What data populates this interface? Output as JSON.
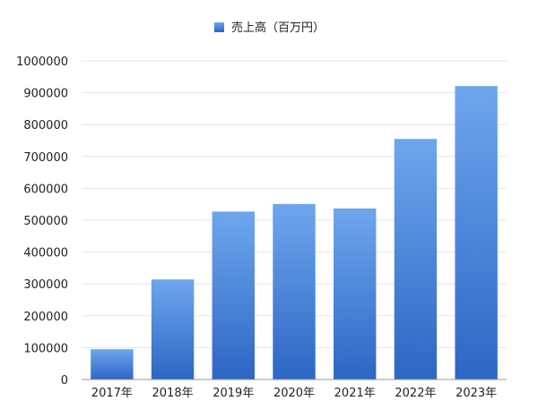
{
  "chart_data": {
    "type": "bar",
    "title": "",
    "xlabel": "",
    "ylabel": "",
    "categories": [
      "2017年",
      "2018年",
      "2019年",
      "2020年",
      "2021年",
      "2022年",
      "2023年"
    ],
    "series": [
      {
        "name": "売上高（百万円）",
        "values": [
          95000,
          314000,
          527000,
          551000,
          537000,
          755000,
          921000
        ]
      }
    ],
    "ylim": [
      0,
      1000000
    ],
    "yticks": [
      "0",
      "100000",
      "200000",
      "300000",
      "400000",
      "500000",
      "600000",
      "700000",
      "800000",
      "900000",
      "1000000"
    ],
    "grid": true,
    "legend_position": "top-center",
    "colors": {
      "bar_top": "#6ea6ee",
      "bar_bottom": "#2d66c4",
      "grid": "#e6e6e6",
      "axis": "#9a9a9a"
    }
  }
}
